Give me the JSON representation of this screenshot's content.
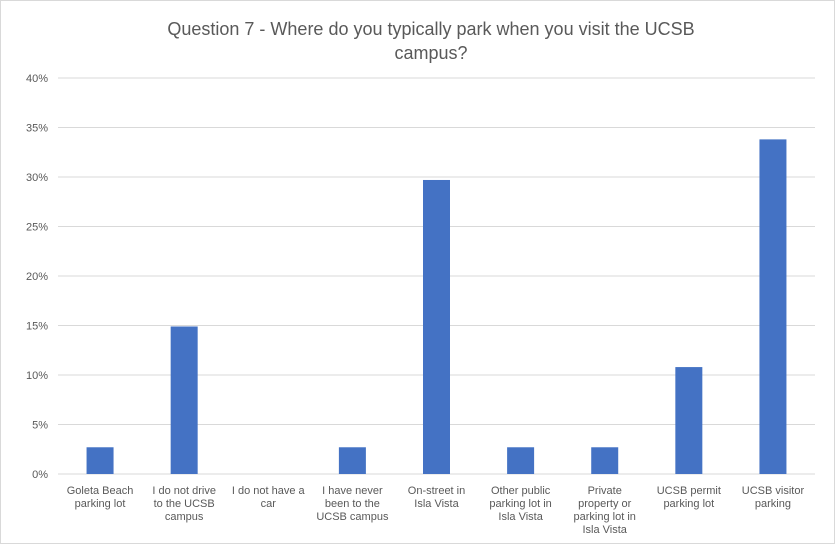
{
  "chart_data": {
    "type": "bar",
    "title": "Question 7 - Where do you typically park when you visit the UCSB campus?",
    "title_lines": [
      "Question 7 - Where do you typically park when you visit the UCSB",
      "campus?"
    ],
    "categories": [
      "Goleta Beach parking lot",
      "I do not drive to the UCSB campus",
      "I do not have a car",
      "I have never been to the UCSB campus",
      "On-street in Isla Vista",
      "Other public parking lot in Isla Vista",
      "Private property or parking lot in Isla Vista",
      "UCSB permit parking lot",
      "UCSB visitor parking"
    ],
    "category_lines": [
      [
        "Goleta Beach",
        "parking lot"
      ],
      [
        "I do not drive",
        "to the UCSB",
        "campus"
      ],
      [
        "I do not have a",
        "car"
      ],
      [
        "I have never",
        "been to the",
        "UCSB campus"
      ],
      [
        "On-street in",
        "Isla Vista"
      ],
      [
        "Other public",
        "parking lot in",
        "Isla Vista"
      ],
      [
        "Private",
        "property or",
        "parking lot in",
        "Isla Vista"
      ],
      [
        "UCSB permit",
        "parking lot"
      ],
      [
        "UCSB visitor",
        "parking"
      ]
    ],
    "values": [
      2.7,
      14.9,
      0,
      2.7,
      29.7,
      2.7,
      2.7,
      10.8,
      33.8
    ],
    "yticks": [
      "0%",
      "5%",
      "10%",
      "15%",
      "20%",
      "25%",
      "30%",
      "35%",
      "40%"
    ],
    "ylim": [
      0,
      40
    ],
    "xlabel": "",
    "ylabel": "",
    "grid": true,
    "bar_color": "#4472c4",
    "grid_color": "#d9d9d9"
  }
}
